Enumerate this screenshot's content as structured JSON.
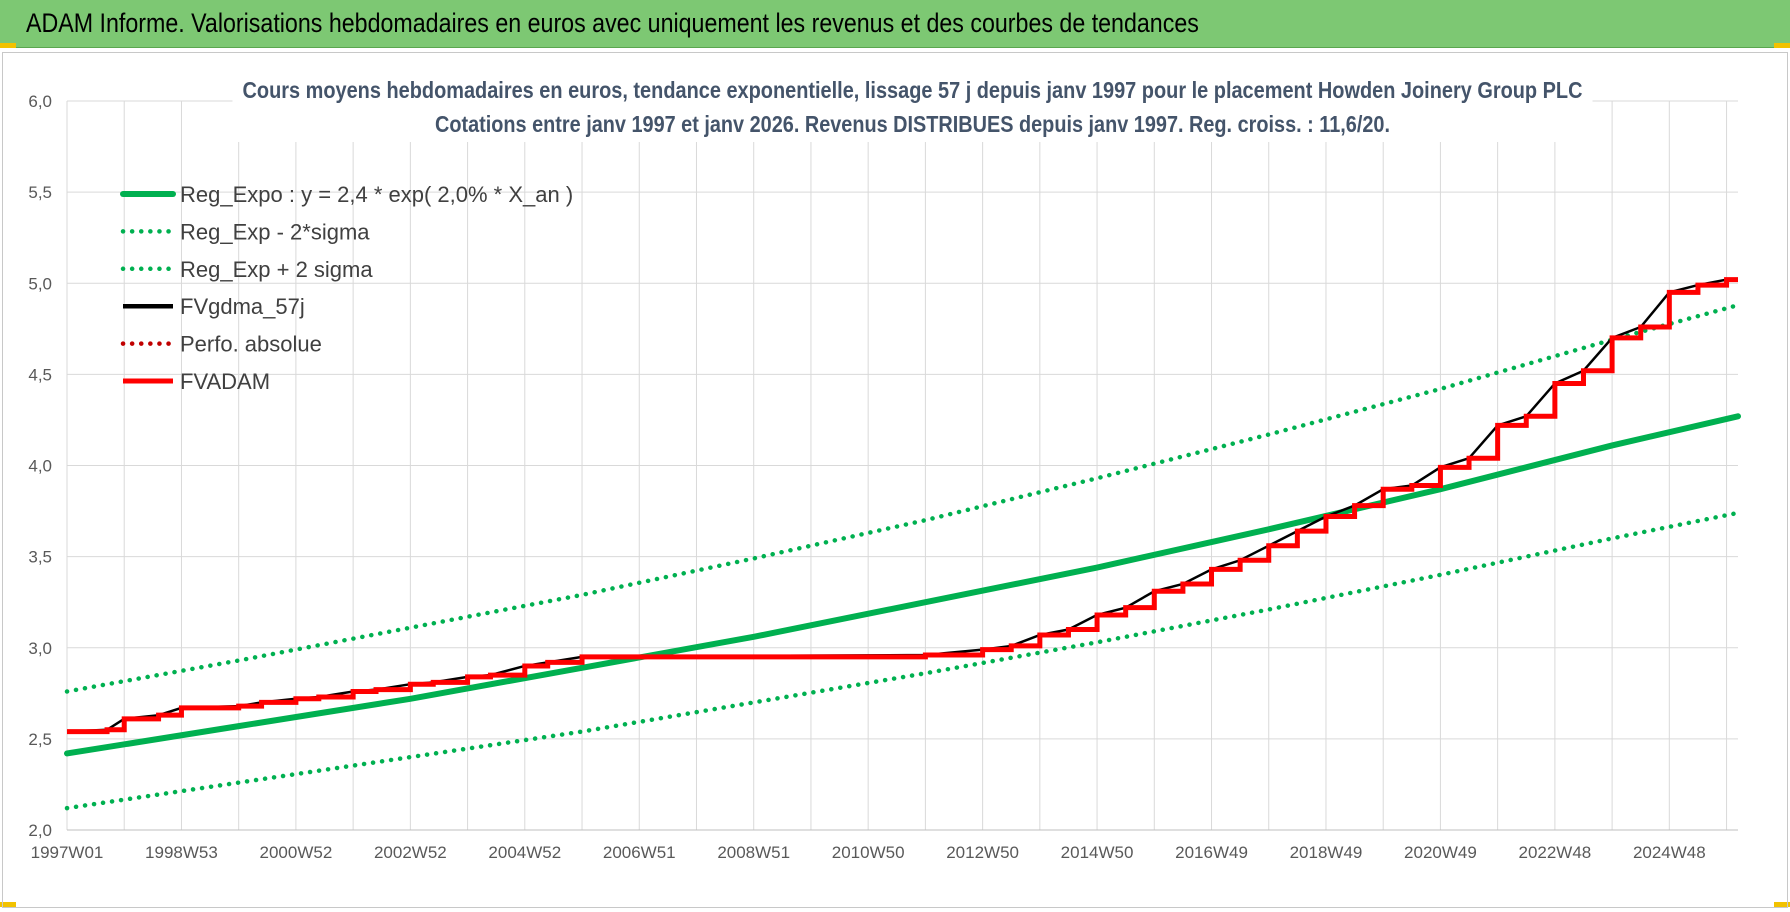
{
  "header": {
    "title": "ADAM Informe. Valorisations hebdomadaires en euros avec uniquement les revenus et des courbes de tendances"
  },
  "colors": {
    "header_bg": "#7dc873",
    "reg_green": "#00b050",
    "fvgdma_black": "#000000",
    "fvadam_red": "#ff0000",
    "perf_red": "#c00000"
  },
  "chart_data": {
    "type": "line",
    "title": "Cours moyens hebdomadaires en euros, tendance exponentielle, lissage 57 j depuis janv 1997 pour le placement Howden Joinery Group PLC",
    "subtitle": "Cotations entre janv 1997 et janv 2026. Revenus DISTRIBUES depuis janv 1997. Reg. croiss. : 11,6/20.",
    "xlabel": "",
    "ylabel": "",
    "x_range": [
      1997.0,
      2026.2
    ],
    "ylim": [
      2.0,
      6.0
    ],
    "y_ticks": [
      "2,0",
      "2,5",
      "3,0",
      "3,5",
      "4,0",
      "4,5",
      "5,0",
      "5,5",
      "6,0"
    ],
    "x_ticks": [
      {
        "label": "1997W01",
        "x": 1997.0
      },
      {
        "label": "1998W53",
        "x": 1999.0
      },
      {
        "label": "2000W52",
        "x": 2001.0
      },
      {
        "label": "2002W52",
        "x": 2003.0
      },
      {
        "label": "2004W52",
        "x": 2005.0
      },
      {
        "label": "2006W51",
        "x": 2007.0
      },
      {
        "label": "2008W51",
        "x": 2009.0
      },
      {
        "label": "2010W50",
        "x": 2011.0
      },
      {
        "label": "2012W50",
        "x": 2013.0
      },
      {
        "label": "2014W50",
        "x": 2015.0
      },
      {
        "label": "2016W49",
        "x": 2017.0
      },
      {
        "label": "2018W49",
        "x": 2019.0
      },
      {
        "label": "2020W49",
        "x": 2021.0
      },
      {
        "label": "2022W48",
        "x": 2023.0
      },
      {
        "label": "2024W48",
        "x": 2025.0
      }
    ],
    "grid": true,
    "legend_position": "top-left",
    "series": [
      {
        "name": "Reg_Expo : y = 2,4 * exp( 2,0% *  X_an )",
        "style": "solid",
        "color": "#00b050",
        "x": [
          1997,
          2000,
          2003,
          2006,
          2009,
          2012,
          2015,
          2018,
          2021,
          2024,
          2026.2
        ],
        "y": [
          2.42,
          2.57,
          2.72,
          2.89,
          3.06,
          3.25,
          3.44,
          3.65,
          3.87,
          4.11,
          4.27
        ]
      },
      {
        "name": "Reg_Exp - 2*sigma",
        "style": "dotted",
        "color": "#00b050",
        "x": [
          1997,
          2000,
          2003,
          2006,
          2009,
          2012,
          2015,
          2018,
          2021,
          2024,
          2026.2
        ],
        "y": [
          2.12,
          2.26,
          2.4,
          2.54,
          2.7,
          2.86,
          3.03,
          3.21,
          3.4,
          3.6,
          3.74
        ]
      },
      {
        "name": "Reg_Exp + 2 sigma",
        "style": "dotted",
        "color": "#00b050",
        "x": [
          1997,
          2000,
          2003,
          2006,
          2009,
          2012,
          2015,
          2018,
          2021,
          2024,
          2026.2
        ],
        "y": [
          2.76,
          2.93,
          3.11,
          3.29,
          3.49,
          3.7,
          3.93,
          4.17,
          4.42,
          4.69,
          4.88
        ]
      },
      {
        "name": "FVgdma_57j",
        "style": "solid",
        "color": "#000000",
        "x": [
          1997.0,
          1997.7,
          1998.0,
          1998.6,
          1999.0,
          2000.0,
          2000.4,
          2001.0,
          2001.4,
          2002.0,
          2002.4,
          2003.0,
          2003.4,
          2004.0,
          2004.4,
          2005.0,
          2005.4,
          2006.0,
          2012.0,
          2013.0,
          2013.5,
          2014.0,
          2014.5,
          2015.0,
          2015.5,
          2016.0,
          2016.5,
          2017.0,
          2017.5,
          2018.0,
          2018.5,
          2019.0,
          2019.5,
          2020.0,
          2020.5,
          2021.0,
          2021.5,
          2022.0,
          2022.5,
          2023.0,
          2023.5,
          2024.0,
          2024.5,
          2025.0,
          2025.5,
          2026.0
        ],
        "y": [
          2.54,
          2.55,
          2.61,
          2.63,
          2.67,
          2.68,
          2.7,
          2.72,
          2.73,
          2.76,
          2.77,
          2.8,
          2.81,
          2.84,
          2.85,
          2.9,
          2.92,
          2.95,
          2.96,
          2.99,
          3.01,
          3.07,
          3.1,
          3.18,
          3.22,
          3.31,
          3.35,
          3.43,
          3.48,
          3.56,
          3.64,
          3.72,
          3.78,
          3.87,
          3.89,
          3.99,
          4.04,
          4.22,
          4.27,
          4.45,
          4.52,
          4.7,
          4.76,
          4.95,
          4.99,
          5.02
        ]
      },
      {
        "name": "Perfo. absolue",
        "style": "dotted",
        "color": "#c00000",
        "x": [],
        "y": []
      },
      {
        "name": "FVADAM",
        "style": "step",
        "color": "#ff0000",
        "x": [
          1997.0,
          1997.7,
          1998.0,
          1998.6,
          1999.0,
          2000.0,
          2000.4,
          2001.0,
          2001.4,
          2002.0,
          2002.4,
          2003.0,
          2003.4,
          2004.0,
          2004.4,
          2005.0,
          2005.4,
          2006.0,
          2012.0,
          2013.0,
          2013.5,
          2014.0,
          2014.5,
          2015.0,
          2015.5,
          2016.0,
          2016.5,
          2017.0,
          2017.5,
          2018.0,
          2018.5,
          2019.0,
          2019.5,
          2020.0,
          2020.5,
          2021.0,
          2021.5,
          2022.0,
          2022.5,
          2023.0,
          2023.5,
          2024.0,
          2024.5,
          2025.0,
          2025.5,
          2026.0
        ],
        "y": [
          2.54,
          2.55,
          2.61,
          2.63,
          2.67,
          2.68,
          2.7,
          2.72,
          2.73,
          2.76,
          2.77,
          2.8,
          2.81,
          2.84,
          2.85,
          2.9,
          2.92,
          2.95,
          2.96,
          2.99,
          3.01,
          3.07,
          3.1,
          3.18,
          3.22,
          3.31,
          3.35,
          3.43,
          3.48,
          3.56,
          3.64,
          3.72,
          3.78,
          3.87,
          3.89,
          3.99,
          4.04,
          4.22,
          4.27,
          4.45,
          4.52,
          4.7,
          4.76,
          4.95,
          4.99,
          5.02
        ]
      }
    ]
  }
}
